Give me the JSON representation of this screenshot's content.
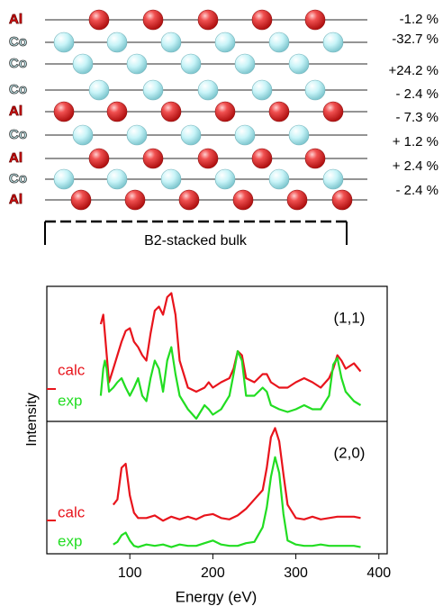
{
  "diagram": {
    "layers": [
      "Al",
      "Co",
      "Co",
      "Co",
      "Al",
      "Co",
      "Al",
      "Co",
      "Al"
    ],
    "spacings": [
      "-1.2 %",
      "-32.7 %",
      "+24.2 %",
      "- 2.4 %",
      "- 7.3 %",
      "+ 1.2 %",
      "+ 2.4 %",
      "- 2.4 %"
    ],
    "bulk_label": "B2-stacked bulk"
  },
  "chart_data": {
    "type": "line",
    "x_label": "Energy (eV)",
    "y_label": "Intensity",
    "xlim": [
      0,
      410
    ],
    "xticks": [
      100,
      200,
      300,
      400
    ],
    "panels": [
      {
        "label": "(1,1)",
        "ylim": [
          0,
          10
        ],
        "x": [
          65,
          68,
          70,
          72,
          75,
          80,
          85,
          90,
          95,
          100,
          105,
          110,
          115,
          120,
          125,
          130,
          135,
          140,
          145,
          150,
          155,
          160,
          170,
          180,
          190,
          195,
          200,
          210,
          220,
          225,
          230,
          235,
          240,
          250,
          260,
          265,
          270,
          280,
          290,
          300,
          310,
          320,
          330,
          340,
          345,
          350,
          355,
          360,
          370,
          378
        ],
        "series": [
          {
            "name": "calc",
            "color": "#e8141c",
            "values": [
              7.2,
              7.9,
              6.5,
              5.0,
              2.9,
              3.9,
              4.9,
              5.9,
              6.7,
              6.9,
              5.9,
              5.5,
              4.9,
              4.5,
              6.5,
              8.2,
              8.5,
              7.9,
              9.2,
              9.5,
              7.9,
              4.5,
              2.5,
              2.2,
              2.5,
              2.9,
              2.5,
              2.9,
              3.2,
              3.9,
              5.2,
              4.9,
              3.2,
              2.9,
              3.5,
              3.5,
              2.9,
              2.5,
              2.5,
              2.9,
              3.2,
              2.9,
              2.5,
              3.2,
              3.9,
              4.9,
              4.5,
              3.9,
              4.3,
              3.7
            ]
          },
          {
            "name": "exp",
            "color": "#22dd22",
            "values": [
              1.9,
              3.9,
              4.5,
              3.9,
              2.2,
              2.5,
              2.9,
              3.2,
              2.5,
              1.9,
              2.5,
              3.2,
              1.9,
              1.5,
              3.2,
              4.5,
              3.9,
              2.2,
              4.5,
              5.5,
              3.5,
              1.9,
              0.9,
              0.2,
              1.2,
              0.9,
              0.5,
              0.9,
              1.9,
              3.5,
              5.2,
              4.5,
              1.9,
              1.9,
              2.5,
              2.2,
              1.2,
              0.9,
              0.7,
              0.9,
              1.2,
              0.9,
              0.9,
              1.9,
              4.2,
              4.7,
              3.2,
              2.2,
              1.5,
              1.2
            ]
          }
        ]
      },
      {
        "label": "(2,0)",
        "ylim": [
          0,
          10
        ],
        "x": [
          80,
          85,
          90,
          95,
          100,
          105,
          110,
          120,
          130,
          140,
          150,
          160,
          170,
          180,
          190,
          200,
          210,
          220,
          230,
          240,
          250,
          260,
          265,
          270,
          275,
          280,
          285,
          290,
          300,
          310,
          320,
          330,
          340,
          350,
          360,
          370,
          378
        ],
        "series": [
          {
            "name": "calc",
            "color": "#e8141c",
            "values": [
              3.7,
              4.1,
              6.5,
              6.8,
              4.4,
              3.1,
              2.7,
              2.7,
              2.9,
              2.5,
              2.8,
              2.6,
              2.8,
              2.6,
              2.9,
              3.0,
              2.7,
              2.6,
              2.9,
              3.4,
              4.1,
              4.8,
              6.5,
              8.8,
              9.5,
              8.5,
              6.0,
              3.7,
              2.7,
              2.6,
              2.8,
              2.6,
              2.7,
              2.8,
              2.8,
              2.8,
              2.7
            ]
          },
          {
            "name": "exp",
            "color": "#22dd22",
            "values": [
              0.7,
              0.9,
              1.4,
              1.6,
              1.0,
              0.6,
              0.5,
              0.7,
              0.6,
              0.7,
              0.5,
              0.7,
              0.6,
              0.6,
              0.8,
              1.0,
              0.7,
              0.6,
              0.6,
              0.8,
              0.9,
              2.0,
              3.5,
              5.8,
              7.3,
              6.1,
              3.0,
              1.0,
              0.7,
              0.6,
              0.6,
              0.7,
              0.6,
              0.6,
              0.6,
              0.6,
              0.5
            ]
          }
        ]
      }
    ]
  }
}
